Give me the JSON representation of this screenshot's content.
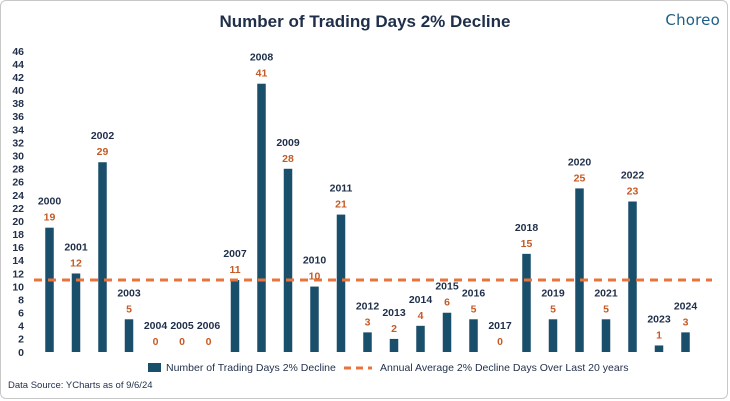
{
  "page": {
    "title": "Number of Trading Days 2% Decline",
    "logo": "Choreo",
    "source": "Data Source: YCharts as of 9/6/24"
  },
  "chart_data": {
    "type": "bar",
    "title": "Number of Trading Days 2% Decline",
    "categories": [
      "2000",
      "2001",
      "2002",
      "2003",
      "2004",
      "2005",
      "2006",
      "2007",
      "2008",
      "2009",
      "2010",
      "2011",
      "2012",
      "2013",
      "2014",
      "2015",
      "2016",
      "2017",
      "2018",
      "2019",
      "2020",
      "2021",
      "2022",
      "2023",
      "2024"
    ],
    "series": [
      {
        "name": "Number of Trading Days 2% Decline",
        "values": [
          19,
          12,
          29,
          5,
          0,
          0,
          0,
          11,
          41,
          28,
          10,
          21,
          3,
          2,
          4,
          6,
          5,
          0,
          15,
          5,
          25,
          5,
          23,
          1,
          3
        ],
        "color": "#1a4f6b"
      }
    ],
    "reference_line": {
      "name": "Annual Average 2% Decline Days Over Last 20 years",
      "value": 11,
      "color": "#e8743b",
      "style": "dashed"
    },
    "ylim": [
      0,
      46
    ],
    "yticks": [
      0,
      2,
      4,
      6,
      8,
      10,
      12,
      14,
      16,
      18,
      20,
      22,
      24,
      26,
      28,
      30,
      32,
      34,
      36,
      38,
      40,
      42,
      44,
      46
    ],
    "grid": false,
    "legend": "bottom"
  }
}
